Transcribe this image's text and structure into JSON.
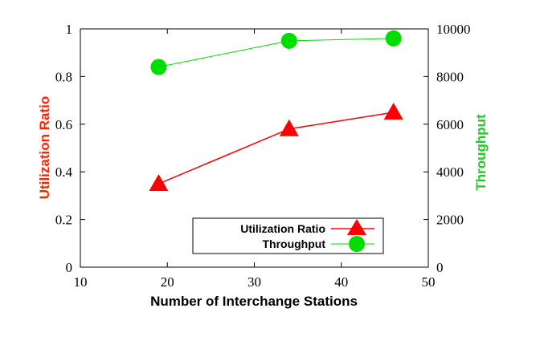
{
  "chart_data": {
    "type": "line",
    "xlabel": "Number of Interchange Stations",
    "ylabel": "Utilization Ratio",
    "y2label": "Throughput",
    "xlim": [
      10,
      50
    ],
    "ylim": [
      0,
      1
    ],
    "y2lim": [
      0,
      10000
    ],
    "xticks": [
      "10",
      "20",
      "30",
      "40",
      "50"
    ],
    "yticks": [
      "0",
      "0.2",
      "0.4",
      "0.6",
      "0.8",
      "1"
    ],
    "y2ticks": [
      "0",
      "2000",
      "4000",
      "6000",
      "8000",
      "10000"
    ],
    "x": [
      19,
      34,
      46
    ],
    "series": [
      {
        "name": "Utilization Ratio",
        "axis": "left",
        "marker": "triangle",
        "color": "#ff0000",
        "values": [
          0.35,
          0.58,
          0.65
        ]
      },
      {
        "name": "Throughput",
        "axis": "right",
        "marker": "circle",
        "color": "#00dd00",
        "values": [
          8400,
          9500,
          9600
        ]
      }
    ],
    "legend_position": "bottom-right",
    "grid": false
  }
}
